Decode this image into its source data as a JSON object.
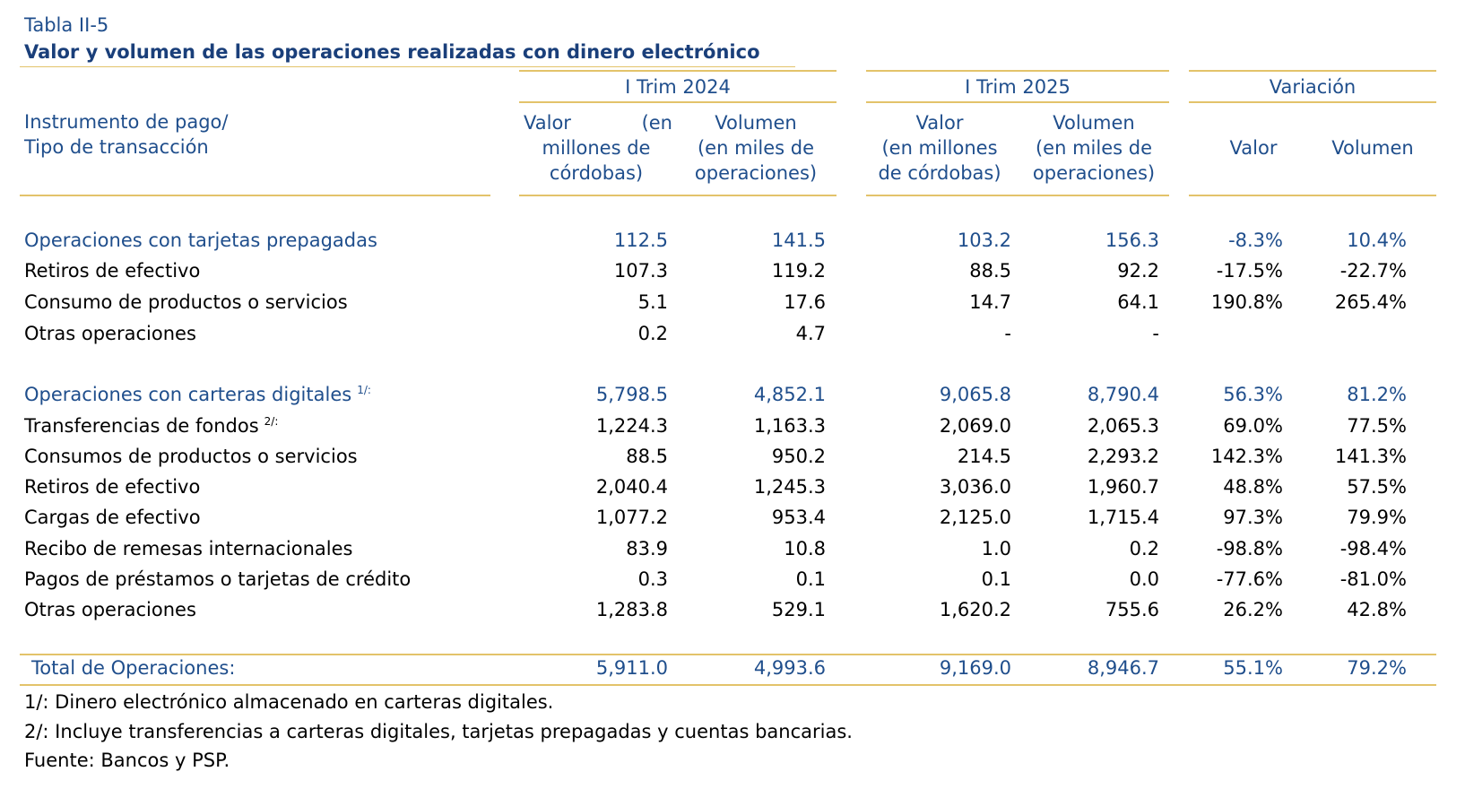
{
  "table_label": "Tabla II-5",
  "title": "Valor y volumen de las operaciones realizadas con dinero electrónico",
  "header": {
    "row_header_1": "Instrumento de pago/",
    "row_header_2": "Tipo de transacción",
    "period_1": "I Trim 2024",
    "period_2": "I Trim 2025",
    "variation": "Variación",
    "p1_value_a": "Valor",
    "p1_value_b": "(en",
    "p1_value_c": "millones de",
    "p1_value_d": "córdobas)",
    "p1_volume_a": "Volumen",
    "p1_volume_b": "(en miles de",
    "p1_volume_c": "operaciones)",
    "p2_value_a": "Valor",
    "p2_value_b": "(en millones",
    "p2_value_c": "de córdobas)",
    "p2_volume_a": "Volumen",
    "p2_volume_b": "(en miles de",
    "p2_volume_c": "operaciones)",
    "var_value": "Valor",
    "var_volume": "Volumen"
  },
  "prepaid": {
    "label": "Operaciones con tarjetas prepagadas",
    "values": [
      "112.5",
      "141.5",
      "103.2",
      "156.3",
      "-8.3%",
      "10.4%"
    ],
    "rows": [
      {
        "label": "Retiros de efectivo",
        "values": [
          "107.3",
          "119.2",
          "88.5",
          "92.2",
          "-17.5%",
          "-22.7%"
        ]
      },
      {
        "label": "Consumo de productos o servicios",
        "values": [
          "5.1",
          "17.6",
          "14.7",
          "64.1",
          "190.8%",
          "265.4%"
        ]
      },
      {
        "label": "Otras operaciones",
        "values": [
          "0.2",
          "4.7",
          "-",
          "-",
          "",
          ""
        ]
      }
    ]
  },
  "wallets": {
    "label": "Operaciones con carteras digitales",
    "note": "1/:",
    "values": [
      "5,798.5",
      "4,852.1",
      "9,065.8",
      "8,790.4",
      "56.3%",
      "81.2%"
    ],
    "rows": [
      {
        "label": "Transferencias de fondos",
        "note": "2/:",
        "values": [
          "1,224.3",
          "1,163.3",
          "2,069.0",
          "2,065.3",
          "69.0%",
          "77.5%"
        ]
      },
      {
        "label": "Consumos de productos o servicios",
        "values": [
          "88.5",
          "950.2",
          "214.5",
          "2,293.2",
          "142.3%",
          "141.3%"
        ]
      },
      {
        "label": "Retiros de efectivo",
        "values": [
          "2,040.4",
          "1,245.3",
          "3,036.0",
          "1,960.7",
          "48.8%",
          "57.5%"
        ]
      },
      {
        "label": "Cargas de efectivo",
        "values": [
          "1,077.2",
          "953.4",
          "2,125.0",
          "1,715.4",
          "97.3%",
          "79.9%"
        ]
      },
      {
        "label": "Recibo de remesas internacionales",
        "values": [
          "83.9",
          "10.8",
          "1.0",
          "0.2",
          "-98.8%",
          "-98.4%"
        ]
      },
      {
        "label": "Pagos de préstamos o tarjetas de crédito",
        "values": [
          "0.3",
          "0.1",
          "0.1",
          "0.0",
          "-77.6%",
          "-81.0%"
        ]
      },
      {
        "label": "Otras operaciones",
        "values": [
          "1,283.8",
          "529.1",
          "1,620.2",
          "755.6",
          "26.2%",
          "42.8%"
        ]
      }
    ]
  },
  "total": {
    "label": "Total de Operaciones:",
    "values": [
      "5,911.0",
      "4,993.6",
      "9,169.0",
      "8,946.7",
      "55.1%",
      "79.2%"
    ]
  },
  "footnotes": {
    "note1": "1/: Dinero electrónico almacenado en carteras digitales.",
    "note2": "2/: Incluye transferencias a carteras digitales, tarjetas prepagadas y cuentas bancarias.",
    "source": "Fuente: Bancos y PSP."
  },
  "colors": {
    "heading_blue": "#1f4e8c",
    "rule_gold": "#e3c36a"
  }
}
